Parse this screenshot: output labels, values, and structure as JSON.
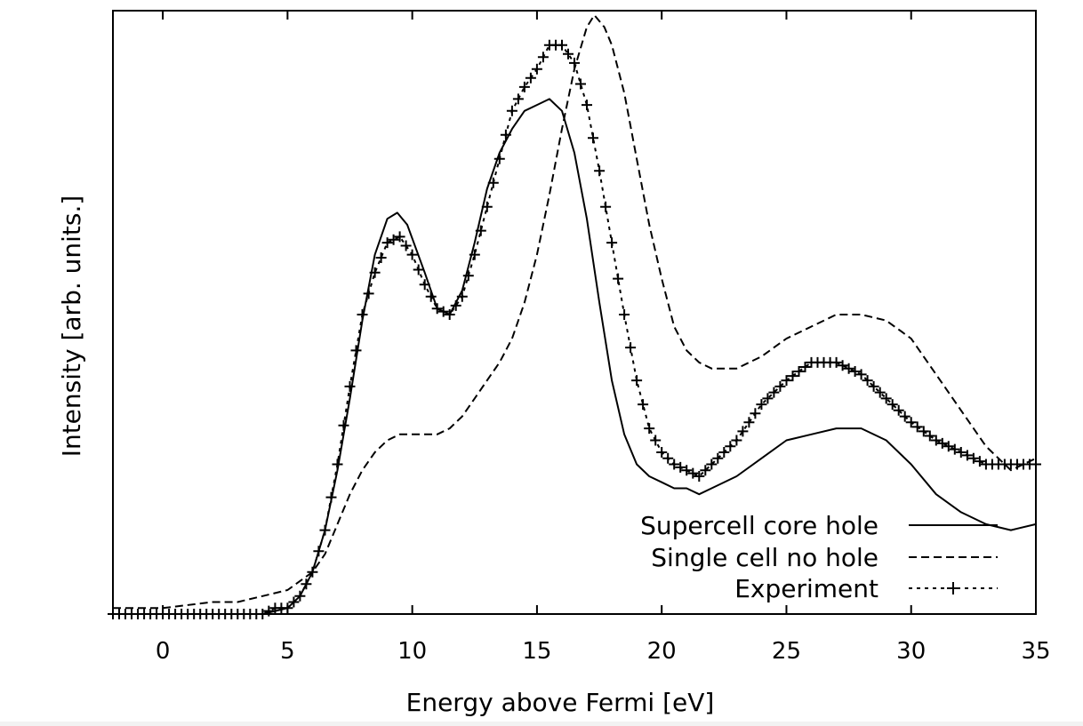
{
  "chart_data": {
    "type": "line",
    "xlabel": "Energy above Fermi [eV]",
    "ylabel": "Intensity [arb. units.]",
    "xlim": [
      -2,
      35
    ],
    "ylim": [
      0,
      1
    ],
    "x_ticks": [
      0,
      5,
      10,
      15,
      20,
      25,
      30,
      35
    ],
    "y_ticks": [],
    "grid": false,
    "legend_position": "bottom-right",
    "series": [
      {
        "name": "Supercell core hole",
        "style": "solid",
        "color": "#000000",
        "points": [
          [
            -2,
            0.0
          ],
          [
            0,
            0.0
          ],
          [
            2,
            0.0
          ],
          [
            4,
            0.0
          ],
          [
            5,
            0.01
          ],
          [
            5.5,
            0.03
          ],
          [
            6,
            0.07
          ],
          [
            6.5,
            0.14
          ],
          [
            7,
            0.24
          ],
          [
            7.5,
            0.36
          ],
          [
            8,
            0.49
          ],
          [
            8.5,
            0.6
          ],
          [
            9,
            0.66
          ],
          [
            9.4,
            0.67
          ],
          [
            9.8,
            0.65
          ],
          [
            10.5,
            0.57
          ],
          [
            11,
            0.51
          ],
          [
            11.5,
            0.5
          ],
          [
            12,
            0.54
          ],
          [
            12.5,
            0.62
          ],
          [
            13,
            0.71
          ],
          [
            13.5,
            0.77
          ],
          [
            14,
            0.81
          ],
          [
            14.5,
            0.84
          ],
          [
            15,
            0.85
          ],
          [
            15.5,
            0.86
          ],
          [
            16,
            0.84
          ],
          [
            16.5,
            0.77
          ],
          [
            17,
            0.66
          ],
          [
            17.5,
            0.52
          ],
          [
            18,
            0.39
          ],
          [
            18.5,
            0.3
          ],
          [
            19,
            0.25
          ],
          [
            19.5,
            0.23
          ],
          [
            20,
            0.22
          ],
          [
            20.5,
            0.21
          ],
          [
            21,
            0.21
          ],
          [
            21.5,
            0.2
          ],
          [
            22,
            0.21
          ],
          [
            23,
            0.23
          ],
          [
            24,
            0.26
          ],
          [
            25,
            0.29
          ],
          [
            26,
            0.3
          ],
          [
            27,
            0.31
          ],
          [
            28,
            0.31
          ],
          [
            29,
            0.29
          ],
          [
            30,
            0.25
          ],
          [
            31,
            0.2
          ],
          [
            32,
            0.17
          ],
          [
            33,
            0.15
          ],
          [
            34,
            0.14
          ],
          [
            35,
            0.15
          ]
        ]
      },
      {
        "name": "Single cell no hole",
        "style": "dashed",
        "color": "#000000",
        "points": [
          [
            -2,
            0.01
          ],
          [
            0,
            0.01
          ],
          [
            2,
            0.02
          ],
          [
            3,
            0.02
          ],
          [
            4,
            0.03
          ],
          [
            5,
            0.04
          ],
          [
            6,
            0.07
          ],
          [
            6.5,
            0.1
          ],
          [
            7,
            0.15
          ],
          [
            7.5,
            0.2
          ],
          [
            8,
            0.24
          ],
          [
            8.5,
            0.27
          ],
          [
            9,
            0.29
          ],
          [
            9.5,
            0.3
          ],
          [
            10,
            0.3
          ],
          [
            10.5,
            0.3
          ],
          [
            11,
            0.3
          ],
          [
            11.5,
            0.31
          ],
          [
            12,
            0.33
          ],
          [
            12.5,
            0.36
          ],
          [
            13,
            0.39
          ],
          [
            13.5,
            0.42
          ],
          [
            14,
            0.46
          ],
          [
            14.5,
            0.52
          ],
          [
            15,
            0.6
          ],
          [
            15.5,
            0.7
          ],
          [
            16,
            0.81
          ],
          [
            16.5,
            0.91
          ],
          [
            17,
            0.98
          ],
          [
            17.3,
            1.0
          ],
          [
            17.7,
            0.98
          ],
          [
            18,
            0.95
          ],
          [
            18.5,
            0.87
          ],
          [
            19,
            0.76
          ],
          [
            19.5,
            0.65
          ],
          [
            20,
            0.56
          ],
          [
            20.5,
            0.48
          ],
          [
            21,
            0.44
          ],
          [
            21.5,
            0.42
          ],
          [
            22,
            0.41
          ],
          [
            22.5,
            0.41
          ],
          [
            23,
            0.41
          ],
          [
            24,
            0.43
          ],
          [
            25,
            0.46
          ],
          [
            26,
            0.48
          ],
          [
            27,
            0.5
          ],
          [
            28,
            0.5
          ],
          [
            29,
            0.49
          ],
          [
            30,
            0.46
          ],
          [
            31,
            0.4
          ],
          [
            32,
            0.34
          ],
          [
            33,
            0.28
          ],
          [
            34,
            0.24
          ],
          [
            35,
            0.26
          ]
        ]
      },
      {
        "name": "Experiment",
        "style": "dotted-plus",
        "color": "#000000",
        "points": [
          [
            -2,
            0.0
          ],
          [
            0,
            0.0
          ],
          [
            2,
            0.0
          ],
          [
            3,
            0.0
          ],
          [
            4,
            0.0
          ],
          [
            4.5,
            0.01
          ],
          [
            5,
            0.01
          ],
          [
            5.5,
            0.03
          ],
          [
            6,
            0.07
          ],
          [
            6.5,
            0.14
          ],
          [
            7,
            0.25
          ],
          [
            7.5,
            0.38
          ],
          [
            8,
            0.5
          ],
          [
            8.5,
            0.57
          ],
          [
            9,
            0.62
          ],
          [
            9.5,
            0.63
          ],
          [
            10,
            0.6
          ],
          [
            10.5,
            0.55
          ],
          [
            11,
            0.51
          ],
          [
            11.5,
            0.5
          ],
          [
            12,
            0.53
          ],
          [
            12.5,
            0.6
          ],
          [
            13,
            0.68
          ],
          [
            13.5,
            0.76
          ],
          [
            14,
            0.84
          ],
          [
            14.5,
            0.88
          ],
          [
            15,
            0.91
          ],
          [
            15.5,
            0.95
          ],
          [
            16,
            0.95
          ],
          [
            16.5,
            0.92
          ],
          [
            17,
            0.85
          ],
          [
            17.5,
            0.74
          ],
          [
            18,
            0.62
          ],
          [
            18.5,
            0.5
          ],
          [
            19,
            0.39
          ],
          [
            19.5,
            0.31
          ],
          [
            20,
            0.27
          ],
          [
            20.5,
            0.25
          ],
          [
            21,
            0.24
          ],
          [
            21.5,
            0.23
          ],
          [
            22,
            0.25
          ],
          [
            23,
            0.29
          ],
          [
            24,
            0.35
          ],
          [
            25,
            0.39
          ],
          [
            26,
            0.42
          ],
          [
            27,
            0.42
          ],
          [
            28,
            0.4
          ],
          [
            29,
            0.36
          ],
          [
            30,
            0.32
          ],
          [
            31,
            0.29
          ],
          [
            32,
            0.27
          ],
          [
            33,
            0.25
          ],
          [
            34,
            0.25
          ],
          [
            35,
            0.25
          ]
        ]
      }
    ]
  }
}
